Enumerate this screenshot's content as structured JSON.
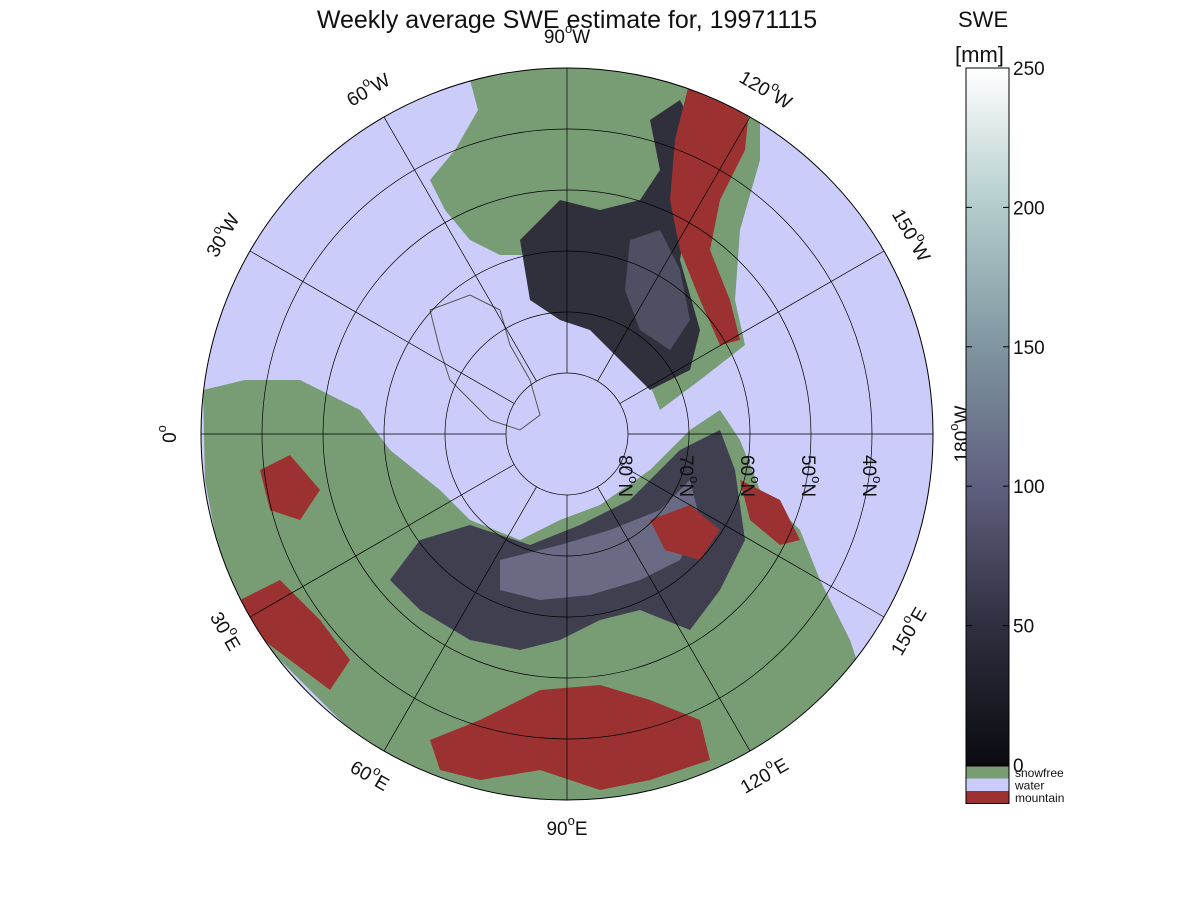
{
  "title": "Weekly average SWE estimate for, 19971115",
  "map": {
    "projection": "north polar stereographic",
    "longitude_labels": [
      {
        "base": "90",
        "dir": "W",
        "lon": -90
      },
      {
        "base": "60",
        "dir": "W",
        "lon": -60
      },
      {
        "base": "30",
        "dir": "W",
        "lon": -30
      },
      {
        "base": "0",
        "dir": "",
        "lon": 0
      },
      {
        "base": "30",
        "dir": "E",
        "lon": 30
      },
      {
        "base": "60",
        "dir": "E",
        "lon": 60
      },
      {
        "base": "90",
        "dir": "E",
        "lon": 90
      },
      {
        "base": "120",
        "dir": "E",
        "lon": 120
      },
      {
        "base": "150",
        "dir": "E",
        "lon": 150
      },
      {
        "base": "180",
        "dir": "W",
        "lon": 180
      },
      {
        "base": "150",
        "dir": "W",
        "lon": -150
      },
      {
        "base": "120",
        "dir": "W",
        "lon": -120
      }
    ],
    "latitude_labels": [
      {
        "base": "80",
        "dir": "N",
        "lat": 80
      },
      {
        "base": "70",
        "dir": "N",
        "lat": 70
      },
      {
        "base": "60",
        "dir": "N",
        "lat": 60
      },
      {
        "base": "50",
        "dir": "N",
        "lat": 50
      },
      {
        "base": "40",
        "dir": "N",
        "lat": 40
      }
    ]
  },
  "colorbar": {
    "title_line1": "SWE",
    "title_line2": "[mm]",
    "ticks": [
      "0",
      "50",
      "100",
      "150",
      "200",
      "250"
    ],
    "min": 0,
    "max": 250
  },
  "legend": [
    {
      "label": "snowfree",
      "color": "#789c74"
    },
    {
      "label": "water",
      "color": "#ccccfa"
    },
    {
      "label": "mountain",
      "color": "#9c3131"
    }
  ],
  "colors": {
    "water": "#ccccfa",
    "snowfree": "#789c74",
    "mountain": "#9c3131",
    "snow_low": "#0b0b10",
    "snow_mid": "#5f5f7f",
    "snow_high": "#ffffff"
  }
}
